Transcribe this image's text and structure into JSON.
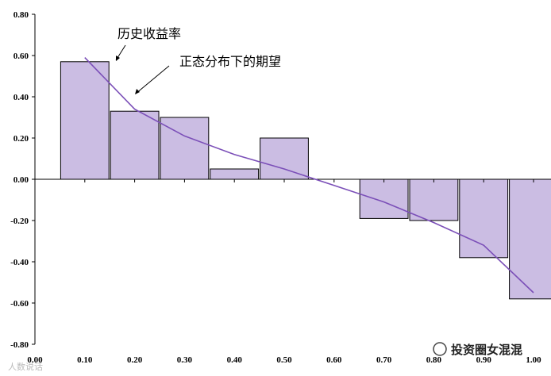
{
  "chart_data": {
    "type": "bar",
    "categories": [
      "0.10",
      "0.20",
      "0.30",
      "0.40",
      "0.50",
      "0.60",
      "0.70",
      "0.80",
      "0.90",
      "1.00"
    ],
    "series": [
      {
        "name": "历史收益率",
        "kind": "bar",
        "values": [
          0.57,
          0.33,
          0.3,
          0.05,
          0.2,
          0.0,
          -0.19,
          -0.2,
          -0.38,
          -0.58
        ]
      },
      {
        "name": "正态分布下的期望",
        "kind": "line",
        "x": [
          0.1,
          0.2,
          0.3,
          0.4,
          0.5,
          0.6,
          0.7,
          0.8,
          0.9,
          1.0
        ],
        "values": [
          0.59,
          0.34,
          0.21,
          0.12,
          0.05,
          -0.03,
          -0.11,
          -0.21,
          -0.32,
          -0.55
        ]
      }
    ],
    "xlim": [
      0.0,
      1.0
    ],
    "ylim": [
      -0.8,
      0.8
    ],
    "x_ticks": [
      "0.00",
      "0.10",
      "0.20",
      "0.30",
      "0.40",
      "0.50",
      "0.60",
      "0.70",
      "0.80",
      "0.90",
      "1.00"
    ],
    "y_ticks": [
      "0.80",
      "0.60",
      "0.40",
      "0.20",
      "0.00",
      "-0.20",
      "-0.40",
      "-0.60",
      "-0.80"
    ],
    "annotations": [
      "历史收益率",
      "正态分布下的期望"
    ],
    "colors": {
      "bar_fill": "#cbbde3",
      "bar_stroke": "#000000",
      "line": "#7b4fb8"
    },
    "grid": false
  },
  "watermarks": {
    "right": "投资圈女混混",
    "left": "人数说话"
  }
}
